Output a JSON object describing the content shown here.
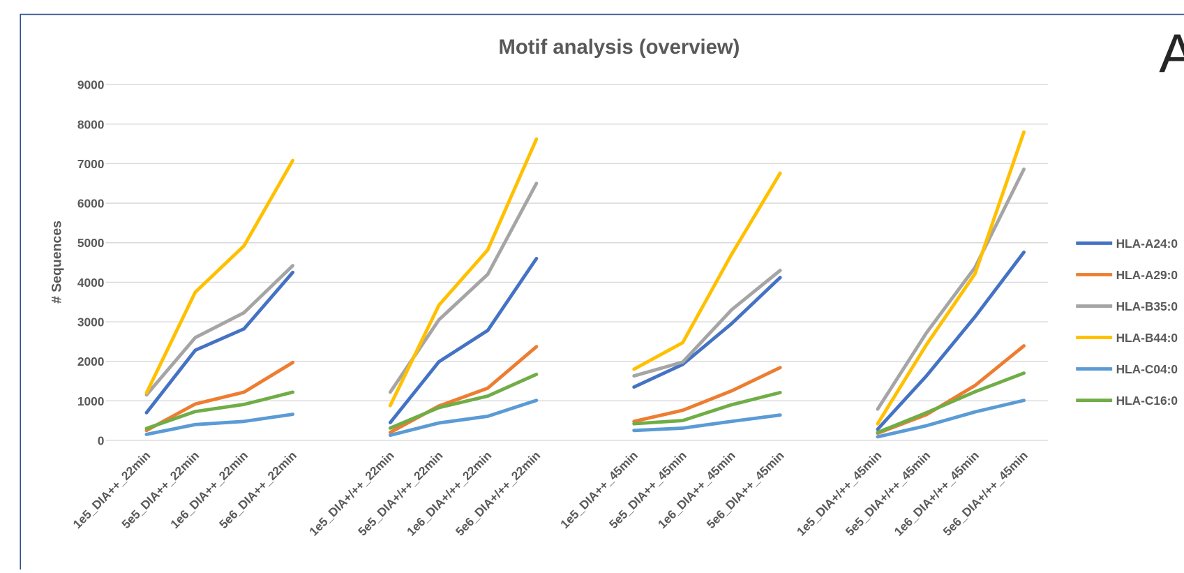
{
  "chart_data": {
    "type": "line",
    "title": "Motif analysis (overview)",
    "panel_label": "A",
    "y_label": "# Sequences",
    "categories": [
      "1e5_DIA++_22min",
      "5e5_DIA++_22min",
      "1e6_DIA++_22min",
      "5e6_DIA++_22min",
      null,
      "1e5_DIA+/++_22min",
      "5e5_DIA+/++_22min",
      "1e6_DIA+/++_22min",
      "5e6_DIA+/++_22min",
      null,
      "1e5_DIA++_45min",
      "5e5_DIA++_45min",
      "1e6_DIA++_45min",
      "5e6_DIA++_45min",
      null,
      "1e5_DIA+/++_45min",
      "5e5_DIA+/++_45min",
      "1e6_DIA+/++_45min",
      "5e6_DIA+/++_45min"
    ],
    "series": [
      {
        "name": "HLA-A24:0",
        "color": "#4472c4",
        "values": [
          700,
          2280,
          2820,
          4250,
          null,
          450,
          1990,
          2780,
          4600,
          null,
          1350,
          1920,
          2950,
          4120,
          null,
          280,
          1630,
          3130,
          4760
        ]
      },
      {
        "name": "HLA-A29:0",
        "color": "#ed7d31",
        "values": [
          250,
          920,
          1220,
          1970,
          null,
          200,
          870,
          1320,
          2370,
          null,
          480,
          760,
          1250,
          1840,
          null,
          180,
          650,
          1390,
          2390
        ]
      },
      {
        "name": "HLA-B35:0",
        "color": "#a5a5a5",
        "values": [
          1150,
          2600,
          3230,
          4420,
          null,
          1220,
          3050,
          4200,
          6500,
          null,
          1630,
          1980,
          3300,
          4300,
          null,
          790,
          2720,
          4380,
          6860
        ]
      },
      {
        "name": "HLA-B44:0",
        "color": "#ffc000",
        "values": [
          1200,
          3750,
          4920,
          7080,
          null,
          880,
          3420,
          4820,
          7620,
          null,
          1800,
          2470,
          4700,
          6760,
          null,
          420,
          2420,
          4220,
          7800
        ]
      },
      {
        "name": "HLA-C04:0",
        "color": "#5b9bd5",
        "values": [
          150,
          400,
          480,
          660,
          null,
          130,
          440,
          610,
          1010,
          null,
          250,
          310,
          480,
          640,
          null,
          90,
          370,
          720,
          1010
        ]
      },
      {
        "name": "HLA-C16:0",
        "color": "#70ad47",
        "values": [
          300,
          730,
          910,
          1220,
          null,
          310,
          830,
          1120,
          1670,
          null,
          420,
          500,
          900,
          1210,
          null,
          200,
          700,
          1230,
          1700
        ]
      }
    ],
    "ylim": [
      0,
      9000
    ],
    "yticks": [
      0,
      1000,
      2000,
      3000,
      4000,
      5000,
      6000,
      7000,
      8000,
      9000
    ],
    "grid": true,
    "legend": "right"
  }
}
